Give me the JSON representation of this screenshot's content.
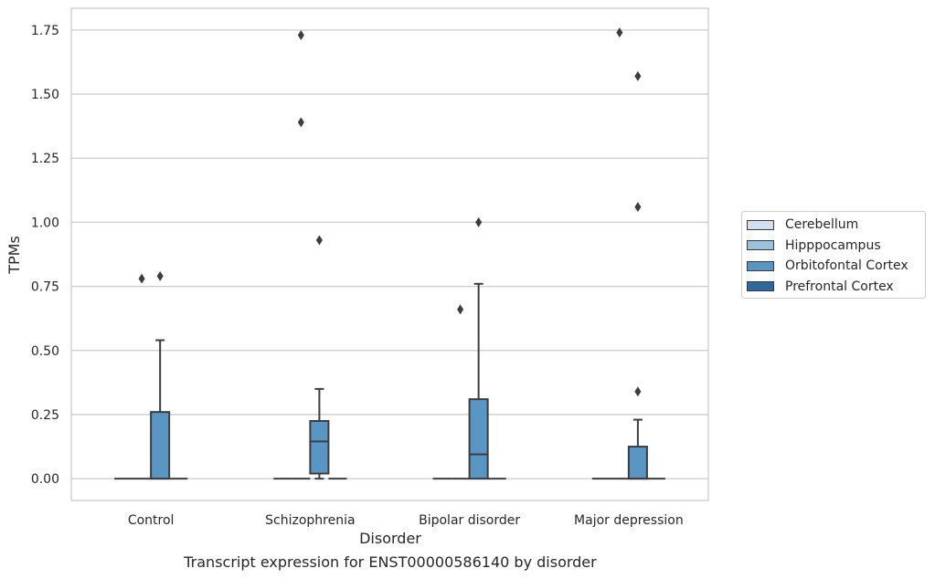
{
  "chart_data": {
    "type": "box",
    "xlabel": "Disorder",
    "ylabel": "TPMs",
    "caption": "Transcript expression for ENST00000586140 by disorder",
    "ylim": [
      -0.085,
      1.835
    ],
    "yticks": [
      0.0,
      0.25,
      0.5,
      0.75,
      1.0,
      1.25,
      1.5,
      1.75
    ],
    "ytick_labels": [
      "0.00",
      "0.25",
      "0.50",
      "0.75",
      "1.00",
      "1.25",
      "1.50",
      "1.75"
    ],
    "grid": "horizontal",
    "legend_position": "outside-right",
    "categories": [
      "Control",
      "Schizophrenia",
      "Bipolar disorder",
      "Major depression"
    ],
    "series": [
      {
        "name": "Cerebellum",
        "color": "#d2dfee",
        "boxes": [
          {
            "q1": 0,
            "median": 0,
            "q3": 0,
            "whisker_low": 0,
            "whisker_high": 0,
            "outliers": []
          },
          {
            "q1": 0,
            "median": 0,
            "q3": 0,
            "whisker_low": 0,
            "whisker_high": 0,
            "outliers": []
          },
          {
            "q1": 0,
            "median": 0,
            "q3": 0,
            "whisker_low": 0,
            "whisker_high": 0,
            "outliers": []
          },
          {
            "q1": 0,
            "median": 0,
            "q3": 0,
            "whisker_low": 0,
            "whisker_high": 0,
            "outliers": []
          }
        ]
      },
      {
        "name": "Hipppocampus",
        "color": "#9dc3dc",
        "boxes": [
          {
            "q1": 0,
            "median": 0,
            "q3": 0,
            "whisker_low": 0,
            "whisker_high": 0,
            "outliers": [
              0.78
            ]
          },
          {
            "q1": 0,
            "median": 0,
            "q3": 0,
            "whisker_low": 0,
            "whisker_high": 0,
            "outliers": [
              1.39,
              1.73
            ]
          },
          {
            "q1": 0,
            "median": 0,
            "q3": 0,
            "whisker_low": 0,
            "whisker_high": 0,
            "outliers": [
              0.66
            ]
          },
          {
            "q1": 0,
            "median": 0,
            "q3": 0,
            "whisker_low": 0,
            "whisker_high": 0,
            "outliers": [
              1.74
            ]
          }
        ]
      },
      {
        "name": "Orbitofontal Cortex",
        "color": "#5a96c4",
        "boxes": [
          {
            "q1": 0,
            "median": 0,
            "q3": 0.26,
            "whisker_low": 0,
            "whisker_high": 0.54,
            "outliers": [
              0.79
            ]
          },
          {
            "q1": 0.02,
            "median": 0.145,
            "q3": 0.225,
            "whisker_low": 0,
            "whisker_high": 0.35,
            "outliers": [
              0.93
            ]
          },
          {
            "q1": 0,
            "median": 0.095,
            "q3": 0.31,
            "whisker_low": 0,
            "whisker_high": 0.76,
            "outliers": [
              1.0
            ]
          },
          {
            "q1": 0,
            "median": 0,
            "q3": 0.125,
            "whisker_low": 0,
            "whisker_high": 0.23,
            "outliers": [
              0.34,
              1.06,
              1.57
            ]
          }
        ]
      },
      {
        "name": "Prefrontal Cortex",
        "color": "#2d689f",
        "boxes": [
          {
            "q1": 0,
            "median": 0,
            "q3": 0,
            "whisker_low": 0,
            "whisker_high": 0,
            "outliers": []
          },
          {
            "q1": 0,
            "median": 0,
            "q3": 0,
            "whisker_low": 0,
            "whisker_high": 0,
            "outliers": []
          },
          {
            "q1": 0,
            "median": 0,
            "q3": 0,
            "whisker_low": 0,
            "whisker_high": 0,
            "outliers": []
          },
          {
            "q1": 0,
            "median": 0,
            "q3": 0,
            "whisker_low": 0,
            "whisker_high": 0,
            "outliers": []
          }
        ]
      }
    ]
  }
}
